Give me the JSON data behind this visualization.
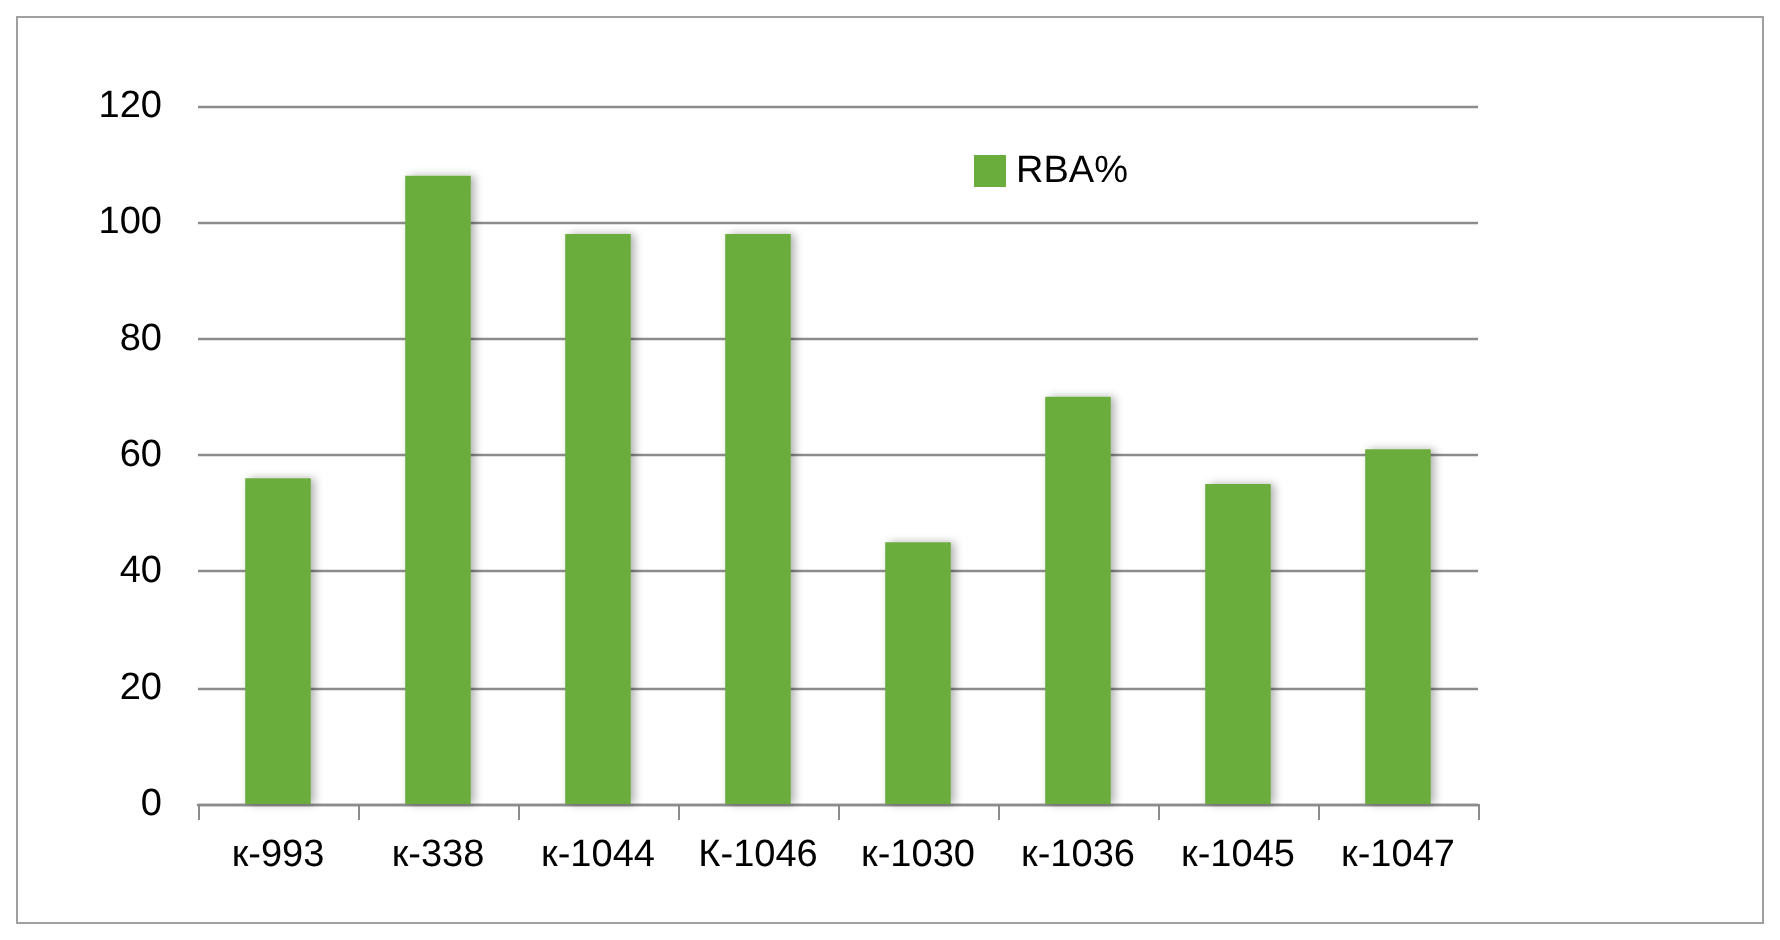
{
  "chart_data": {
    "type": "bar",
    "categories": [
      "к-993",
      "к-338",
      "к-1044",
      "К-1046",
      "к-1030",
      "к-1036",
      "к-1045",
      "к-1047"
    ],
    "series": [
      {
        "name": "RBA%",
        "color": "#6aad3d",
        "values": [
          56,
          108,
          98,
          98,
          45,
          70,
          55,
          61
        ]
      }
    ],
    "ylim": [
      0,
      120
    ],
    "yticks": [
      0,
      20,
      40,
      60,
      80,
      100,
      120
    ],
    "grid": "y",
    "legend": "top right"
  }
}
